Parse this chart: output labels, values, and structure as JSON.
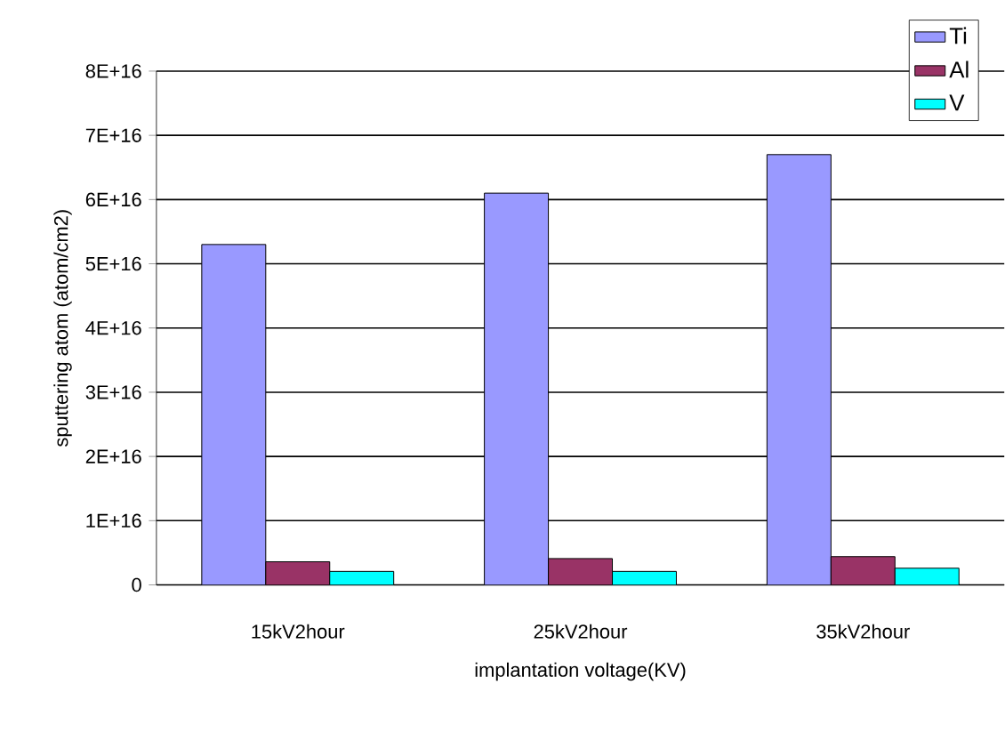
{
  "chart_data": {
    "type": "bar",
    "xlabel": "implantation voltage(KV)",
    "ylabel": "sputtering atom  (atom/cm2)",
    "categories": [
      "15kV2hour",
      "25kV2hour",
      "35kV2hour"
    ],
    "series": [
      {
        "name": "Ti",
        "color": "#9999ff",
        "values": [
          5.3e+16,
          6.1e+16,
          6.7e+16
        ]
      },
      {
        "name": "Al",
        "color": "#993366",
        "values": [
          3600000000000000.0,
          4100000000000000.0,
          4400000000000000.0
        ]
      },
      {
        "name": "V",
        "color": "#00ffff",
        "values": [
          2100000000000000.0,
          2100000000000000.0,
          2600000000000000.0
        ]
      }
    ],
    "ylim": [
      0,
      8e+16
    ],
    "yticks": [
      0,
      {
        "value": 1e+16,
        "label": "1E+16"
      },
      {
        "value": 2e+16,
        "label": "2E+16"
      },
      {
        "value": 3e+16,
        "label": "3E+16"
      },
      {
        "value": 4e+16,
        "label": "4E+16"
      },
      {
        "value": 5e+16,
        "label": "5E+16"
      },
      {
        "value": 6e+16,
        "label": "6E+16"
      },
      {
        "value": 7e+16,
        "label": "7E+16"
      },
      {
        "value": 8e+16,
        "label": "8E+16"
      }
    ],
    "grid": "y",
    "legend": "top right"
  }
}
